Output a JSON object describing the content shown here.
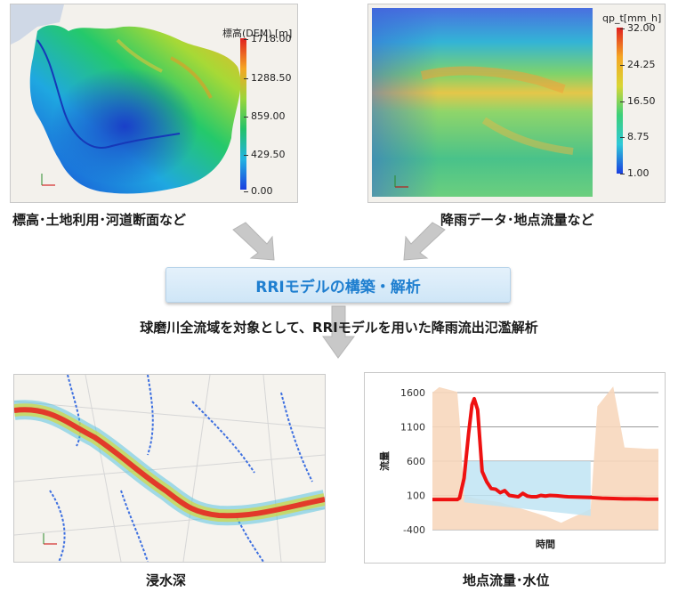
{
  "top_left": {
    "legend_title": "標高(DEM) [m]",
    "ticks": [
      "1718.00",
      "1288.50",
      "859.00",
      "429.50",
      "0.00"
    ],
    "caption": "標高･土地利用･河道断面など"
  },
  "top_right": {
    "legend_title": "qp_t[mm_h]",
    "ticks": [
      "32.00",
      "24.25",
      "16.50",
      "8.75",
      "1.00"
    ],
    "caption": "降雨データ･地点流量など"
  },
  "banner": {
    "label": "RRIモデルの構築・解析"
  },
  "subtitle": "球磨川全流域を対象として、RRIモデルを用いた降雨流出氾濫解析",
  "bottom_left": {
    "caption": "浸水深"
  },
  "bottom_right": {
    "caption": "地点流量･水位"
  },
  "chart_data": {
    "type": "line",
    "ylabel": "流量",
    "xlabel": "時間",
    "yticks": [
      1600,
      1100,
      600,
      100,
      -400
    ],
    "ylim": [
      -400,
      1600
    ],
    "xlim": [
      0,
      100
    ],
    "grid": true,
    "series": [
      {
        "role": "discharge",
        "color": "#ee1111",
        "x": [
          0,
          11,
          12,
          14,
          16,
          17.5,
          18.5,
          20,
          22,
          24,
          26,
          28,
          30,
          32,
          34,
          36,
          38,
          40,
          42,
          44,
          46,
          48,
          50,
          52,
          55,
          60,
          65,
          70,
          75,
          80,
          85,
          90,
          95,
          100
        ],
        "values": [
          40,
          40,
          60,
          350,
          1000,
          1420,
          1510,
          1350,
          450,
          300,
          200,
          190,
          140,
          170,
          100,
          90,
          80,
          130,
          90,
          80,
          80,
          100,
          90,
          100,
          95,
          80,
          75,
          70,
          60,
          55,
          50,
          50,
          45,
          45
        ]
      }
    ],
    "background_bands": [
      {
        "role": "water-level",
        "color": "#f7d7bc",
        "x": [
          0,
          3,
          11,
          12,
          14,
          20,
          30,
          40,
          50,
          57,
          60,
          70,
          73,
          80,
          85,
          90,
          95,
          100
        ],
        "values": [
          1600,
          1680,
          1610,
          1200,
          100,
          50,
          0,
          -100,
          -200,
          -300,
          -250,
          -100,
          1400,
          1690,
          800,
          790,
          780,
          780
        ]
      },
      {
        "role": "reference-range",
        "color": "#bfe4f3",
        "x": [
          14,
          70
        ],
        "values": [
          600,
          600
        ]
      }
    ]
  }
}
